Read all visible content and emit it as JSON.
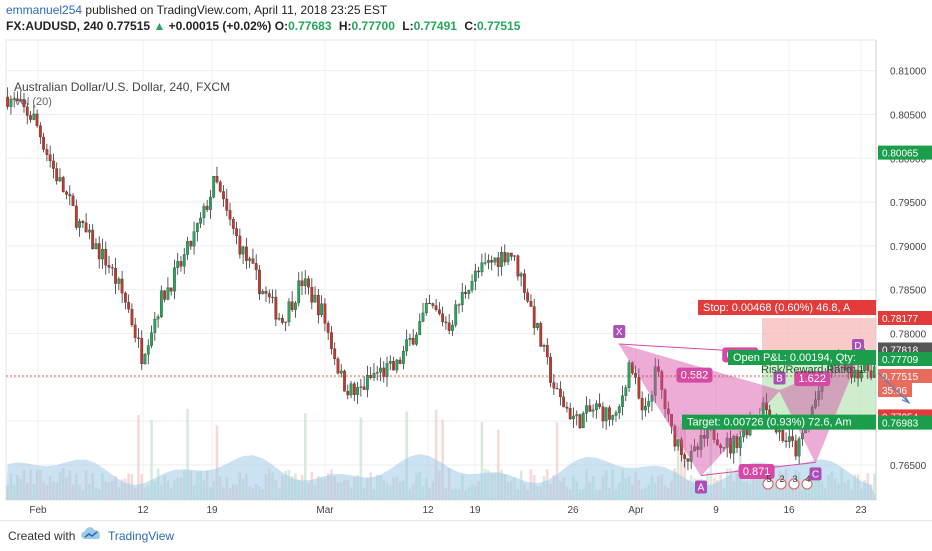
{
  "header": {
    "author": "emmanuel254",
    "published_text": "published on TradingView.com, April 11, 2018 23:25 EST",
    "symbol": "FX:AUDUSD, 240",
    "last": "0.77515",
    "change": "+0.00015 (+0.02%)",
    "ohlc": [
      {
        "label": "O:",
        "value": "0.77683"
      },
      {
        "label": "H:",
        "value": "0.77700"
      },
      {
        "label": "L:",
        "value": "0.77491"
      },
      {
        "label": "C:",
        "value": "0.77515"
      }
    ]
  },
  "legend": {
    "title": "Australian Dollar/U.S. Dollar, 240, FXCM",
    "volume": "Vol (20)"
  },
  "footer": {
    "created_with": "Created with",
    "brand": "TradingView"
  },
  "colors": {
    "up": "#26a65b",
    "down": "#c0392b",
    "pattern": "#d64aa6",
    "stop_zone": "#f7b3b3",
    "target_zone": "#b8e6b8",
    "volume": "#9ecbe8"
  },
  "chart_data": {
    "type": "candlestick",
    "y_ticks": [
      0.765,
      0.77,
      0.775,
      0.78,
      0.785,
      0.79,
      0.795,
      0.8,
      0.805,
      0.81
    ],
    "y_tick_labels": [
      "0.76500",
      "0.77000",
      "0.77500",
      "0.78000",
      "0.78500",
      "0.79000",
      "0.79500",
      "0.80000",
      "0.80500",
      "0.81000"
    ],
    "ylim": [
      0.761,
      0.8135
    ],
    "x_tick_labels": [
      "Feb",
      "12",
      "19",
      "Mar",
      "12",
      "19",
      "26",
      "Apr",
      "9",
      "16",
      "23"
    ],
    "price_path": [
      [
        0,
        0.807
      ],
      [
        8,
        0.8045
      ],
      [
        14,
        0.7985
      ],
      [
        22,
        0.792
      ],
      [
        30,
        0.788
      ],
      [
        36,
        0.783
      ],
      [
        40,
        0.7775
      ],
      [
        46,
        0.784
      ],
      [
        52,
        0.788
      ],
      [
        58,
        0.793
      ],
      [
        62,
        0.7975
      ],
      [
        66,
        0.793
      ],
      [
        70,
        0.7895
      ],
      [
        76,
        0.785
      ],
      [
        82,
        0.7815
      ],
      [
        88,
        0.786
      ],
      [
        94,
        0.7825
      ],
      [
        100,
        0.7745
      ],
      [
        104,
        0.773
      ],
      [
        110,
        0.7755
      ],
      [
        116,
        0.776
      ],
      [
        120,
        0.779
      ],
      [
        126,
        0.783
      ],
      [
        132,
        0.781
      ],
      [
        138,
        0.786
      ],
      [
        144,
        0.788
      ],
      [
        150,
        0.7895
      ],
      [
        154,
        0.786
      ],
      [
        160,
        0.778
      ],
      [
        164,
        0.773
      ],
      [
        170,
        0.77
      ],
      [
        176,
        0.7715
      ],
      [
        182,
        0.77
      ],
      [
        186,
        0.777
      ],
      [
        190,
        0.77
      ],
      [
        194,
        0.776
      ],
      [
        198,
        0.769
      ],
      [
        204,
        0.7655
      ],
      [
        210,
        0.769
      ],
      [
        216,
        0.767
      ],
      [
        220,
        0.769
      ],
      [
        226,
        0.772
      ],
      [
        230,
        0.769
      ],
      [
        236,
        0.7665
      ],
      [
        240,
        0.771
      ],
      [
        244,
        0.775
      ],
      [
        248,
        0.7772
      ],
      [
        252,
        0.776
      ]
    ],
    "pattern": {
      "name": "XABCD",
      "points": [
        {
          "label": "X",
          "i": 187,
          "price": 0.7788
        },
        {
          "label": "A",
          "i": 212,
          "price": 0.7638
        },
        {
          "label": "B",
          "i": 236,
          "price": 0.7735
        },
        {
          "label": "C",
          "i": 247,
          "price": 0.7653
        },
        {
          "label": "D",
          "i": 260,
          "price": 0.7772
        }
      ],
      "ratios": [
        {
          "text": "0.582",
          "i": 210,
          "price": 0.7752
        },
        {
          "text": "0.897",
          "i": 224,
          "price": 0.7775
        },
        {
          "text": "1.622",
          "i": 246,
          "price": 0.7748
        },
        {
          "text": "0.871",
          "i": 229,
          "price": 0.7642
        }
      ]
    },
    "position": {
      "stop_label": "Stop: 0.00468 (0.60%) 46.8, A",
      "pnl_label": "Open P&L: 0.00194, Qty:",
      "ratio_label": "Risk/Reward Ratio: 1.",
      "target_label": "Target: 0.00726 (0.93%) 72.6, Am",
      "stop_price": 0.78177,
      "entry_price": 0.77709,
      "target_price": 0.76983
    },
    "price_tags": [
      {
        "text": "0.80065",
        "price": 0.80065,
        "color": "#1b9e4b"
      },
      {
        "text": "0.78177",
        "price": 0.78177,
        "color": "#e33b3b"
      },
      {
        "text": "0.77818",
        "price": 0.77818,
        "color": "#555555"
      },
      {
        "text": "0.77709",
        "price": 0.77709,
        "color": "#1b9e4b"
      },
      {
        "text": "0.77515",
        "price": 0.77515,
        "color": "#e86c5d"
      },
      {
        "text": "0.77054",
        "price": 0.77054,
        "color": "#e33b3b"
      },
      {
        "text": "0.76983",
        "price": 0.76983,
        "color": "#1b9e4b"
      }
    ],
    "countdown": "35:06",
    "event_numbers": [
      "5",
      "2",
      "3",
      "4"
    ]
  }
}
